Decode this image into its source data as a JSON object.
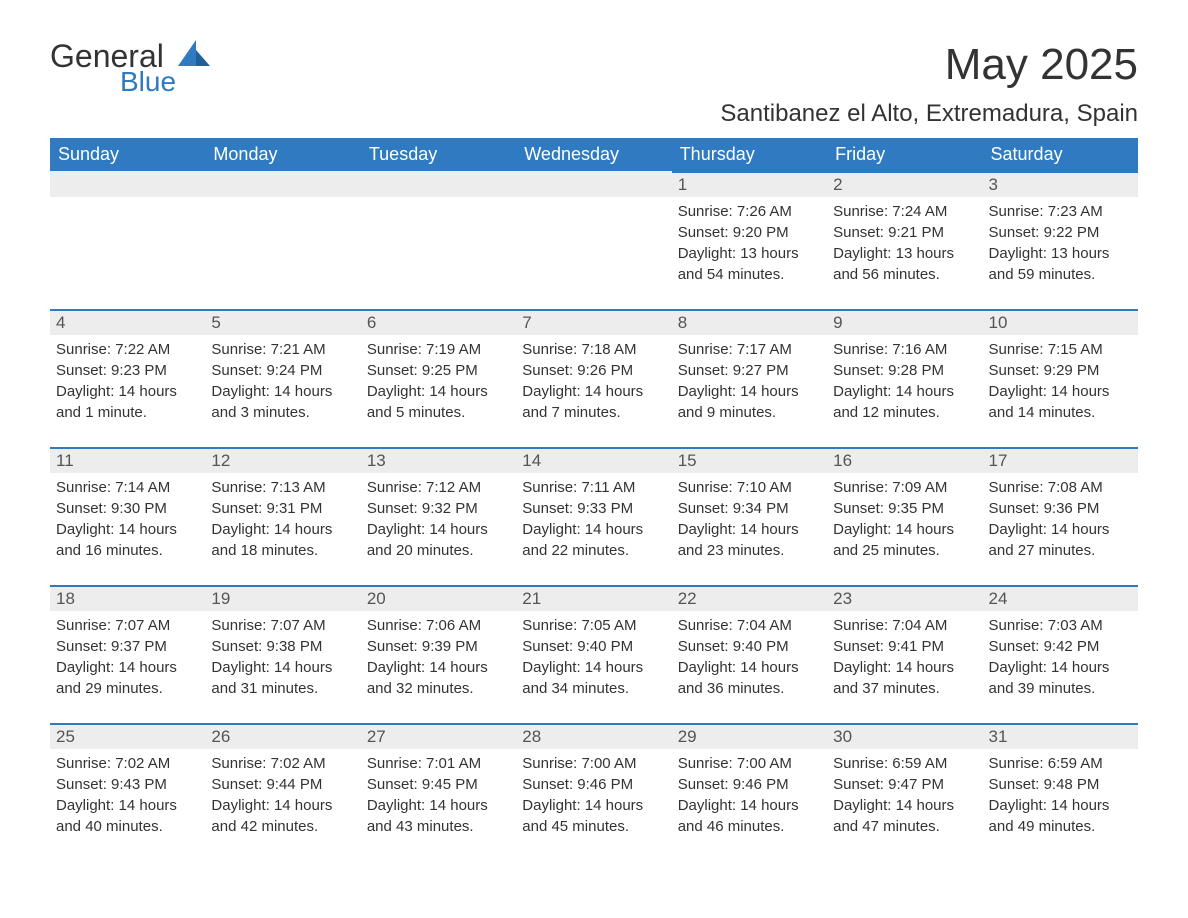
{
  "logo": {
    "general": "General",
    "blue": "Blue"
  },
  "title": "May 2025",
  "location": "Santibanez el Alto, Extremadura, Spain",
  "colors": {
    "header_bg": "#2f7ac0",
    "header_text": "#ffffff",
    "daybar_bg": "#ededed",
    "daybar_border": "#2f7ac0",
    "body_bg": "#ffffff",
    "text": "#333333"
  },
  "weekdays": [
    "Sunday",
    "Monday",
    "Tuesday",
    "Wednesday",
    "Thursday",
    "Friday",
    "Saturday"
  ],
  "weeks": [
    [
      null,
      null,
      null,
      null,
      {
        "n": "1",
        "sr": "Sunrise: 7:26 AM",
        "ss": "Sunset: 9:20 PM",
        "dl": "Daylight: 13 hours and 54 minutes."
      },
      {
        "n": "2",
        "sr": "Sunrise: 7:24 AM",
        "ss": "Sunset: 9:21 PM",
        "dl": "Daylight: 13 hours and 56 minutes."
      },
      {
        "n": "3",
        "sr": "Sunrise: 7:23 AM",
        "ss": "Sunset: 9:22 PM",
        "dl": "Daylight: 13 hours and 59 minutes."
      }
    ],
    [
      {
        "n": "4",
        "sr": "Sunrise: 7:22 AM",
        "ss": "Sunset: 9:23 PM",
        "dl": "Daylight: 14 hours and 1 minute."
      },
      {
        "n": "5",
        "sr": "Sunrise: 7:21 AM",
        "ss": "Sunset: 9:24 PM",
        "dl": "Daylight: 14 hours and 3 minutes."
      },
      {
        "n": "6",
        "sr": "Sunrise: 7:19 AM",
        "ss": "Sunset: 9:25 PM",
        "dl": "Daylight: 14 hours and 5 minutes."
      },
      {
        "n": "7",
        "sr": "Sunrise: 7:18 AM",
        "ss": "Sunset: 9:26 PM",
        "dl": "Daylight: 14 hours and 7 minutes."
      },
      {
        "n": "8",
        "sr": "Sunrise: 7:17 AM",
        "ss": "Sunset: 9:27 PM",
        "dl": "Daylight: 14 hours and 9 minutes."
      },
      {
        "n": "9",
        "sr": "Sunrise: 7:16 AM",
        "ss": "Sunset: 9:28 PM",
        "dl": "Daylight: 14 hours and 12 minutes."
      },
      {
        "n": "10",
        "sr": "Sunrise: 7:15 AM",
        "ss": "Sunset: 9:29 PM",
        "dl": "Daylight: 14 hours and 14 minutes."
      }
    ],
    [
      {
        "n": "11",
        "sr": "Sunrise: 7:14 AM",
        "ss": "Sunset: 9:30 PM",
        "dl": "Daylight: 14 hours and 16 minutes."
      },
      {
        "n": "12",
        "sr": "Sunrise: 7:13 AM",
        "ss": "Sunset: 9:31 PM",
        "dl": "Daylight: 14 hours and 18 minutes."
      },
      {
        "n": "13",
        "sr": "Sunrise: 7:12 AM",
        "ss": "Sunset: 9:32 PM",
        "dl": "Daylight: 14 hours and 20 minutes."
      },
      {
        "n": "14",
        "sr": "Sunrise: 7:11 AM",
        "ss": "Sunset: 9:33 PM",
        "dl": "Daylight: 14 hours and 22 minutes."
      },
      {
        "n": "15",
        "sr": "Sunrise: 7:10 AM",
        "ss": "Sunset: 9:34 PM",
        "dl": "Daylight: 14 hours and 23 minutes."
      },
      {
        "n": "16",
        "sr": "Sunrise: 7:09 AM",
        "ss": "Sunset: 9:35 PM",
        "dl": "Daylight: 14 hours and 25 minutes."
      },
      {
        "n": "17",
        "sr": "Sunrise: 7:08 AM",
        "ss": "Sunset: 9:36 PM",
        "dl": "Daylight: 14 hours and 27 minutes."
      }
    ],
    [
      {
        "n": "18",
        "sr": "Sunrise: 7:07 AM",
        "ss": "Sunset: 9:37 PM",
        "dl": "Daylight: 14 hours and 29 minutes."
      },
      {
        "n": "19",
        "sr": "Sunrise: 7:07 AM",
        "ss": "Sunset: 9:38 PM",
        "dl": "Daylight: 14 hours and 31 minutes."
      },
      {
        "n": "20",
        "sr": "Sunrise: 7:06 AM",
        "ss": "Sunset: 9:39 PM",
        "dl": "Daylight: 14 hours and 32 minutes."
      },
      {
        "n": "21",
        "sr": "Sunrise: 7:05 AM",
        "ss": "Sunset: 9:40 PM",
        "dl": "Daylight: 14 hours and 34 minutes."
      },
      {
        "n": "22",
        "sr": "Sunrise: 7:04 AM",
        "ss": "Sunset: 9:40 PM",
        "dl": "Daylight: 14 hours and 36 minutes."
      },
      {
        "n": "23",
        "sr": "Sunrise: 7:04 AM",
        "ss": "Sunset: 9:41 PM",
        "dl": "Daylight: 14 hours and 37 minutes."
      },
      {
        "n": "24",
        "sr": "Sunrise: 7:03 AM",
        "ss": "Sunset: 9:42 PM",
        "dl": "Daylight: 14 hours and 39 minutes."
      }
    ],
    [
      {
        "n": "25",
        "sr": "Sunrise: 7:02 AM",
        "ss": "Sunset: 9:43 PM",
        "dl": "Daylight: 14 hours and 40 minutes."
      },
      {
        "n": "26",
        "sr": "Sunrise: 7:02 AM",
        "ss": "Sunset: 9:44 PM",
        "dl": "Daylight: 14 hours and 42 minutes."
      },
      {
        "n": "27",
        "sr": "Sunrise: 7:01 AM",
        "ss": "Sunset: 9:45 PM",
        "dl": "Daylight: 14 hours and 43 minutes."
      },
      {
        "n": "28",
        "sr": "Sunrise: 7:00 AM",
        "ss": "Sunset: 9:46 PM",
        "dl": "Daylight: 14 hours and 45 minutes."
      },
      {
        "n": "29",
        "sr": "Sunrise: 7:00 AM",
        "ss": "Sunset: 9:46 PM",
        "dl": "Daylight: 14 hours and 46 minutes."
      },
      {
        "n": "30",
        "sr": "Sunrise: 6:59 AM",
        "ss": "Sunset: 9:47 PM",
        "dl": "Daylight: 14 hours and 47 minutes."
      },
      {
        "n": "31",
        "sr": "Sunrise: 6:59 AM",
        "ss": "Sunset: 9:48 PM",
        "dl": "Daylight: 14 hours and 49 minutes."
      }
    ]
  ]
}
